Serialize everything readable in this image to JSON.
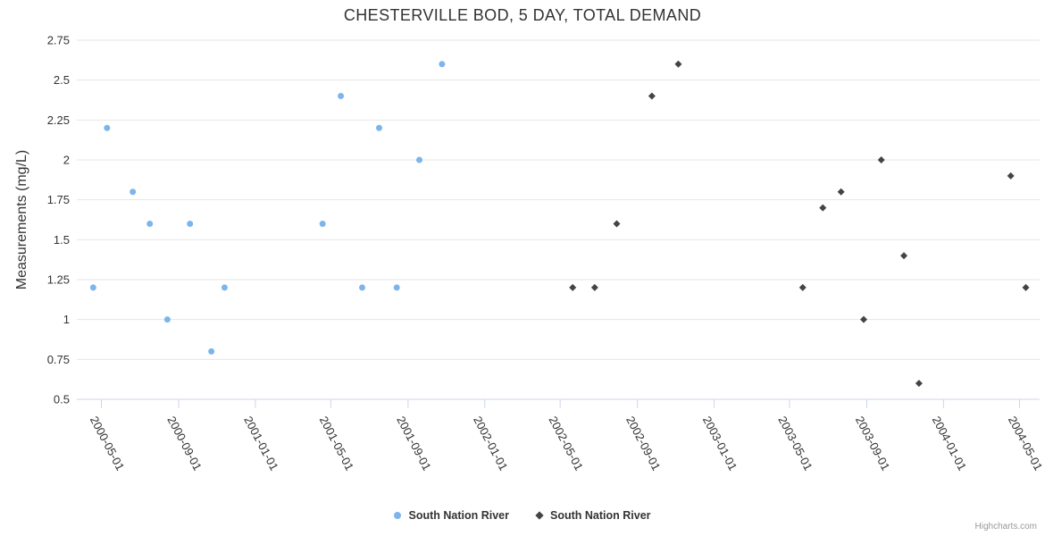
{
  "credits": "Highcharts.com",
  "chart_data": {
    "type": "scatter",
    "title": "CHESTERVILLE BOD, 5 DAY, TOTAL DEMAND",
    "xlabel": "",
    "ylabel": "Measurements (mg/L)",
    "ylim": [
      0.5,
      2.75
    ],
    "grid": "horizontal",
    "legend_position": "bottom-center",
    "y_tick_labels": [
      "0.5",
      "0.75",
      "1",
      "1.25",
      "1.5",
      "1.75",
      "2",
      "2.25",
      "2.5",
      "2.75"
    ],
    "x_ticks": [
      "2000-05-01",
      "2000-09-01",
      "2001-01-01",
      "2001-05-01",
      "2001-09-01",
      "2002-01-01",
      "2002-05-01",
      "2002-09-01",
      "2003-01-01",
      "2003-05-01",
      "2003-09-01",
      "2004-01-01",
      "2004-05-01"
    ],
    "series": [
      {
        "name": "South Nation River",
        "marker": "circle",
        "color": "#7cb5ec",
        "points": [
          [
            "2000-04-18",
            1.2
          ],
          [
            "2000-05-10",
            2.2
          ],
          [
            "2000-06-20",
            1.8
          ],
          [
            "2000-07-17",
            1.6
          ],
          [
            "2000-08-14",
            1.0
          ],
          [
            "2000-09-19",
            1.6
          ],
          [
            "2000-10-23",
            0.8
          ],
          [
            "2000-11-13",
            1.2
          ],
          [
            "2001-04-18",
            1.6
          ],
          [
            "2001-05-17",
            2.4
          ],
          [
            "2001-06-20",
            1.2
          ],
          [
            "2001-07-17",
            2.2
          ],
          [
            "2001-08-14",
            1.2
          ],
          [
            "2001-09-19",
            2.0
          ],
          [
            "2001-10-25",
            2.6
          ]
        ]
      },
      {
        "name": "South Nation River",
        "marker": "diamond",
        "color": "#434348",
        "points": [
          [
            "2002-05-21",
            1.2
          ],
          [
            "2002-06-25",
            1.2
          ],
          [
            "2002-07-30",
            1.6
          ],
          [
            "2002-09-24",
            2.4
          ],
          [
            "2002-11-05",
            2.6
          ],
          [
            "2003-05-22",
            1.2
          ],
          [
            "2003-06-23",
            1.7
          ],
          [
            "2003-07-22",
            1.8
          ],
          [
            "2003-08-27",
            1.0
          ],
          [
            "2003-09-24",
            2.0
          ],
          [
            "2003-10-30",
            1.4
          ],
          [
            "2003-11-23",
            0.6
          ],
          [
            "2004-04-17",
            1.9
          ],
          [
            "2004-05-11",
            1.2
          ]
        ]
      }
    ],
    "colors": {
      "gridline": "#e6e6e6",
      "axis_line": "#ccd6eb",
      "text": "#333333",
      "credits_text": "#999999"
    }
  }
}
